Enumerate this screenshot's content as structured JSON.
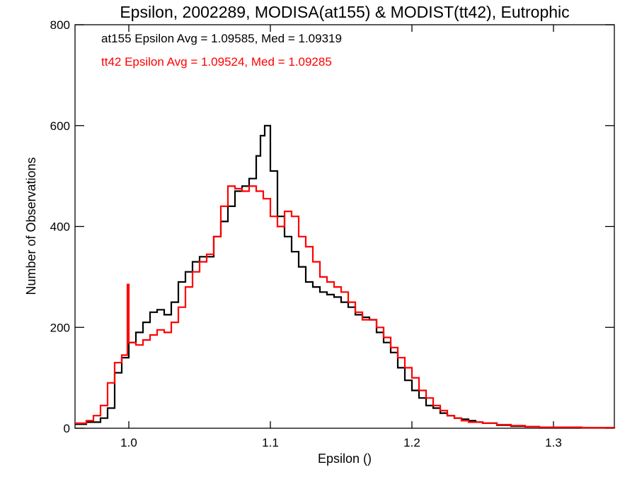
{
  "chart_data": {
    "type": "line",
    "title": "Epsilon, 2002289, MODISA(at155) & MODIST(tt42), Eutrophic",
    "xlabel": "Epsilon ()",
    "ylabel": "Number of Observations",
    "xlim": [
      0.962,
      1.343
    ],
    "ylim": [
      0,
      800
    ],
    "x_ticks": [
      1.0,
      1.1,
      1.2,
      1.3
    ],
    "y_ticks": [
      0,
      200,
      400,
      600,
      800
    ],
    "x_tick_labels": [
      "1.0",
      "1.1",
      "1.2",
      "1.3"
    ],
    "y_tick_labels": [
      "0",
      "200",
      "400",
      "600",
      "800"
    ],
    "grid": false,
    "line_shape": "step",
    "annotations": [
      {
        "text": "at155 Epsilon Avg = 1.09585, Med = 1.09319",
        "color": "#000000"
      },
      {
        "text": "tt42 Epsilon Avg = 1.09524, Med = 1.09285",
        "color": "#ff0000"
      }
    ],
    "series": [
      {
        "color": "#000000",
        "x": [
          0.962,
          0.97,
          0.98,
          0.985,
          0.99,
          0.995,
          1.0,
          1.005,
          1.01,
          1.015,
          1.02,
          1.025,
          1.03,
          1.035,
          1.04,
          1.045,
          1.05,
          1.055,
          1.06,
          1.065,
          1.07,
          1.075,
          1.08,
          1.085,
          1.09,
          1.093,
          1.096,
          1.1,
          1.105,
          1.11,
          1.115,
          1.12,
          1.125,
          1.13,
          1.135,
          1.14,
          1.145,
          1.15,
          1.155,
          1.16,
          1.165,
          1.17,
          1.175,
          1.18,
          1.185,
          1.19,
          1.195,
          1.2,
          1.205,
          1.21,
          1.215,
          1.22,
          1.225,
          1.23,
          1.235,
          1.24,
          1.245,
          1.25,
          1.26,
          1.27,
          1.28,
          1.29,
          1.3,
          1.32,
          1.343
        ],
        "y": [
          8,
          12,
          20,
          40,
          110,
          140,
          170,
          190,
          210,
          230,
          235,
          225,
          250,
          290,
          310,
          330,
          340,
          340,
          380,
          410,
          440,
          470,
          480,
          495,
          540,
          580,
          600,
          510,
          420,
          380,
          350,
          320,
          290,
          280,
          270,
          265,
          260,
          250,
          240,
          225,
          220,
          215,
          190,
          170,
          150,
          120,
          95,
          75,
          60,
          45,
          40,
          30,
          25,
          20,
          18,
          15,
          12,
          10,
          6,
          4,
          3,
          2,
          2,
          1,
          0
        ]
      },
      {
        "color": "#ff0000",
        "x": [
          0.962,
          0.97,
          0.975,
          0.98,
          0.985,
          0.99,
          0.995,
          0.999,
          1.0,
          1.005,
          1.01,
          1.015,
          1.02,
          1.025,
          1.03,
          1.035,
          1.04,
          1.045,
          1.05,
          1.055,
          1.06,
          1.065,
          1.07,
          1.075,
          1.08,
          1.085,
          1.09,
          1.095,
          1.1,
          1.105,
          1.11,
          1.115,
          1.12,
          1.125,
          1.13,
          1.135,
          1.14,
          1.145,
          1.15,
          1.155,
          1.16,
          1.165,
          1.17,
          1.175,
          1.18,
          1.185,
          1.19,
          1.195,
          1.2,
          1.205,
          1.21,
          1.215,
          1.22,
          1.225,
          1.23,
          1.235,
          1.24,
          1.25,
          1.26,
          1.27,
          1.28,
          1.29,
          1.3,
          1.32,
          1.343
        ],
        "y": [
          10,
          15,
          25,
          45,
          90,
          130,
          145,
          285,
          170,
          165,
          175,
          185,
          195,
          190,
          210,
          240,
          280,
          310,
          330,
          345,
          380,
          440,
          480,
          475,
          470,
          480,
          470,
          455,
          420,
          400,
          430,
          420,
          380,
          360,
          330,
          300,
          290,
          280,
          270,
          250,
          230,
          215,
          215,
          200,
          180,
          160,
          140,
          120,
          100,
          75,
          60,
          45,
          35,
          25,
          20,
          15,
          12,
          10,
          7,
          5,
          3,
          2,
          2,
          1,
          0
        ]
      }
    ]
  }
}
